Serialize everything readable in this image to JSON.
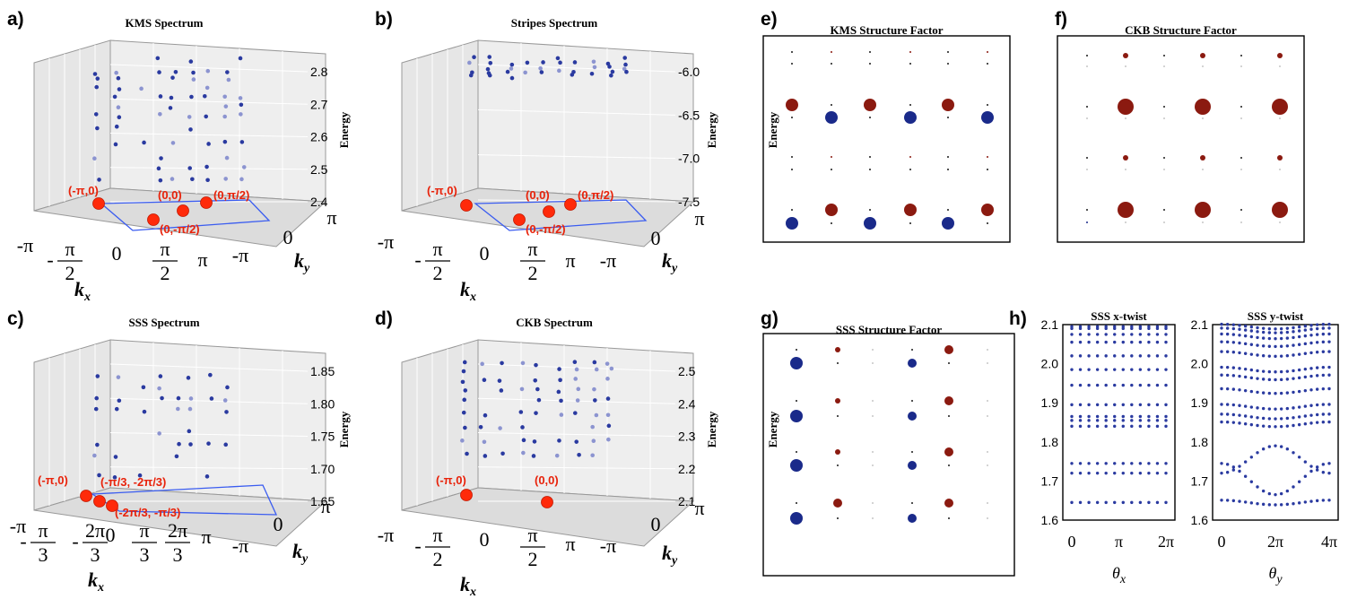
{
  "chart_data": [
    {
      "id": "a",
      "type": "scatter",
      "panel_label": "a)",
      "title": "KMS Spectrum",
      "zlabel": "Energy",
      "xlabel": "k_x",
      "ylabel": "k_y",
      "zlim": [
        2.38,
        2.86
      ],
      "z_ticks": [
        "2.8",
        "2.7",
        "2.6",
        "2.5",
        "2.4"
      ],
      "x_ticks": [
        "-π",
        "-π/2",
        "0",
        "π/2",
        "π"
      ],
      "y_ticks": [
        "-π",
        "0",
        "π"
      ],
      "energies": [
        2.45,
        2.49,
        2.52,
        2.57,
        2.62,
        2.66,
        2.69,
        2.72,
        2.75,
        2.78,
        2.8,
        2.84
      ],
      "gs_points": [
        {
          "label": "(-π,0)"
        },
        {
          "label": "(0,0)"
        },
        {
          "label": "(0,π/2)"
        },
        {
          "label": "(0,-π/2)"
        }
      ]
    },
    {
      "id": "b",
      "type": "scatter",
      "panel_label": "b)",
      "title": "Stripes Spectrum",
      "zlabel": "Energy",
      "xlabel": "k_x",
      "ylabel": "k_y",
      "zlim": [
        -7.85,
        -5.9
      ],
      "z_ticks": [
        "-6.0",
        "-6.5",
        "-7.0",
        "-7.5"
      ],
      "x_ticks": [
        "-π",
        "-π/2",
        "0",
        "π/2",
        "π"
      ],
      "y_ticks": [
        "-π",
        "0",
        "π"
      ],
      "energies": [
        -5.95,
        -6.02,
        -6.08,
        -6.14,
        -6.2
      ],
      "gs_points": [
        {
          "label": "(-π,0)"
        },
        {
          "label": "(0,0)"
        },
        {
          "label": "(0,π/2)"
        },
        {
          "label": "(0,-π/2)"
        }
      ]
    },
    {
      "id": "c",
      "type": "scatter",
      "panel_label": "c)",
      "title": "SSS Spectrum",
      "zlabel": "Energy",
      "xlabel": "k_x",
      "ylabel": "k_y",
      "zlim": [
        1.62,
        1.88
      ],
      "z_ticks": [
        "1.85",
        "1.80",
        "1.75",
        "1.70",
        "1.65"
      ],
      "x_ticks": [
        "-π",
        "-π/3",
        "-2π/3",
        "0",
        "π/3",
        "2π/3",
        "π"
      ],
      "y_ticks": [
        "-π",
        "0",
        "π"
      ],
      "energies": [
        1.665,
        1.7,
        1.72,
        1.74,
        1.78,
        1.8,
        1.82,
        1.84
      ],
      "gs_points": [
        {
          "label": "(-π,0)"
        },
        {
          "label": "(-π/3, -2π/3)"
        },
        {
          "label": "(-2π/3, -π/3)"
        }
      ]
    },
    {
      "id": "d",
      "type": "scatter",
      "panel_label": "d)",
      "title": "CKB Spectrum",
      "zlabel": "Energy",
      "xlabel": "k_x",
      "ylabel": "k_y",
      "zlim": [
        2.08,
        2.52
      ],
      "z_ticks": [
        "2.5",
        "2.4",
        "2.3",
        "2.2",
        "2.1"
      ],
      "x_ticks": [
        "-π",
        "-π/2",
        "0",
        "π/2",
        "π"
      ],
      "y_ticks": [
        "-π",
        "0",
        "π"
      ],
      "energies": [
        2.22,
        2.26,
        2.3,
        2.34,
        2.38,
        2.41,
        2.44,
        2.47,
        2.49
      ],
      "gs_points": [
        {
          "label": "(-π,0)"
        },
        {
          "label": "(0,0)"
        }
      ]
    },
    {
      "id": "e",
      "type": "scatter",
      "panel_label": "e)",
      "title": "KMS Structure Factor",
      "ylabel": "Energy",
      "rows": [
        {
          "size": [
            1,
            1,
            1,
            1,
            1,
            1
          ],
          "color": [
            "dark",
            "red",
            "dark",
            "red",
            "dark",
            "red"
          ]
        },
        {
          "size": [
            1,
            1,
            1,
            1,
            1,
            1
          ],
          "color": [
            "dark",
            "dark",
            "dark",
            "dark",
            "dark",
            "dark"
          ]
        },
        {
          "size": [
            7,
            1,
            7,
            1,
            7,
            1
          ],
          "color": [
            "red",
            "dark",
            "red",
            "dark",
            "red",
            "dark"
          ]
        },
        {
          "size": [
            1,
            7,
            1,
            7,
            1,
            7
          ],
          "color": [
            "dark",
            "blue",
            "dark",
            "blue",
            "dark",
            "blue"
          ]
        },
        {
          "size": [
            1,
            1,
            1,
            1,
            1,
            1
          ],
          "color": [
            "dark",
            "red",
            "dark",
            "red",
            "dark",
            "red"
          ]
        },
        {
          "size": [
            1,
            1,
            1,
            1,
            1,
            1
          ],
          "color": [
            "dark",
            "dark",
            "dark",
            "dark",
            "dark",
            "dark"
          ]
        },
        {
          "size": [
            1,
            7,
            1,
            7,
            1,
            7
          ],
          "color": [
            "dark",
            "red",
            "dark",
            "red",
            "dark",
            "red"
          ]
        },
        {
          "size": [
            7,
            1,
            7,
            1,
            7,
            1
          ],
          "color": [
            "blue",
            "dark",
            "blue",
            "dark",
            "blue",
            "dark"
          ]
        }
      ]
    },
    {
      "id": "f",
      "type": "scatter",
      "panel_label": "f)",
      "title": "CKB Structure Factor",
      "rows": [
        {
          "size": [
            1,
            3,
            1,
            3,
            1,
            3
          ],
          "color": [
            "dark",
            "red",
            "dark",
            "red",
            "dark",
            "red"
          ]
        },
        {
          "size": [
            0.5,
            0.5,
            0.5,
            0.5,
            0.5,
            0.5
          ],
          "color": [
            "dark",
            "dark",
            "dark",
            "dark",
            "dark",
            "dark"
          ]
        },
        {
          "size": [
            1,
            9,
            1,
            9,
            1,
            9
          ],
          "color": [
            "dark",
            "red",
            "dark",
            "red",
            "dark",
            "red"
          ]
        },
        {
          "size": [
            0.5,
            0.5,
            0.5,
            0.5,
            0.5,
            0.5
          ],
          "color": [
            "dark",
            "dark",
            "dark",
            "dark",
            "dark",
            "dark"
          ]
        },
        {
          "size": [
            1,
            3,
            1,
            3,
            1,
            3
          ],
          "color": [
            "dark",
            "red",
            "dark",
            "red",
            "dark",
            "red"
          ]
        },
        {
          "size": [
            0.5,
            0.5,
            0.5,
            0.5,
            0.5,
            0.5
          ],
          "color": [
            "dark",
            "dark",
            "dark",
            "dark",
            "dark",
            "dark"
          ]
        },
        {
          "size": [
            1,
            9,
            1,
            9,
            1,
            9
          ],
          "color": [
            "dark",
            "red",
            "dark",
            "red",
            "dark",
            "red"
          ]
        },
        {
          "size": [
            1,
            0.5,
            0.5,
            0.5,
            0.5,
            0.5
          ],
          "color": [
            "blue",
            "dark",
            "dark",
            "dark",
            "dark",
            "dark"
          ]
        }
      ]
    },
    {
      "id": "g",
      "type": "scatter",
      "panel_label": "g)",
      "title": "SSS Structure Factor",
      "ylabel": "Energy",
      "rows": [
        {
          "size": [
            1,
            3,
            0.5,
            1,
            5,
            0.5
          ],
          "color": [
            "dark",
            "red",
            "dark",
            "dark",
            "red",
            "dark"
          ]
        },
        {
          "size": [
            7,
            1,
            0.5,
            5,
            1,
            0.5
          ],
          "color": [
            "blue",
            "dark",
            "dark",
            "blue",
            "dark",
            "dark"
          ]
        },
        {
          "size": [
            1,
            3,
            0.5,
            1,
            5,
            0.5
          ],
          "color": [
            "dark",
            "red",
            "dark",
            "dark",
            "red",
            "dark"
          ]
        },
        {
          "size": [
            7,
            1,
            0.5,
            5,
            1,
            0.5
          ],
          "color": [
            "blue",
            "dark",
            "dark",
            "blue",
            "dark",
            "dark"
          ]
        },
        {
          "size": [
            1,
            3,
            0.5,
            1,
            5,
            0.5
          ],
          "color": [
            "dark",
            "red",
            "dark",
            "dark",
            "red",
            "dark"
          ]
        },
        {
          "size": [
            7,
            1,
            0.5,
            5,
            1,
            0.5
          ],
          "color": [
            "blue",
            "dark",
            "dark",
            "blue",
            "dark",
            "dark"
          ]
        },
        {
          "size": [
            1,
            5,
            0.5,
            1,
            5,
            0.5
          ],
          "color": [
            "dark",
            "red",
            "dark",
            "dark",
            "red",
            "dark"
          ]
        },
        {
          "size": [
            7,
            1,
            0.5,
            5,
            1,
            0.5
          ],
          "color": [
            "blue",
            "dark",
            "dark",
            "blue",
            "dark",
            "dark"
          ]
        }
      ]
    },
    {
      "id": "h1",
      "type": "scatter",
      "panel_label": "h)",
      "title": "SSS x-twist",
      "xlabel": "θ_x",
      "ylim": [
        1.6,
        2.1
      ],
      "y_ticks": [
        "2.1",
        "2.0",
        "1.9",
        "1.8",
        "1.7",
        "1.6"
      ],
      "x_ticks": [
        "0",
        "π",
        "2π"
      ],
      "levels": [
        1.645,
        1.72,
        1.745,
        1.84,
        1.855,
        1.865,
        1.895,
        1.945,
        1.985,
        2.02,
        2.055,
        2.075,
        2.09,
        2.095
      ]
    },
    {
      "id": "h2",
      "type": "scatter",
      "panel_label": "",
      "title": "SSS y-twist",
      "ylim": [
        1.6,
        2.1
      ],
      "y_ticks": [
        "2.1",
        "2.0",
        "1.9",
        "1.8",
        "1.7",
        "1.6"
      ],
      "x_ticks": [
        "0",
        "2π",
        "4π"
      ],
      "levels": [
        1.645,
        1.845,
        1.865,
        1.89,
        1.93,
        1.965,
        1.985,
        2.025,
        2.05,
        2.07,
        2.085,
        2.095
      ],
      "crossing_band": {
        "low": [
          1.665,
          1.745
        ],
        "high": [
          1.72,
          1.79
        ]
      }
    }
  ],
  "colors": {
    "red": "#8b1a10",
    "blue": "#1a2a8a",
    "dark": "#1a1a1a",
    "point": "#2a3aa0",
    "gs": "#ff2a0a",
    "box": "#3a5cf0"
  }
}
